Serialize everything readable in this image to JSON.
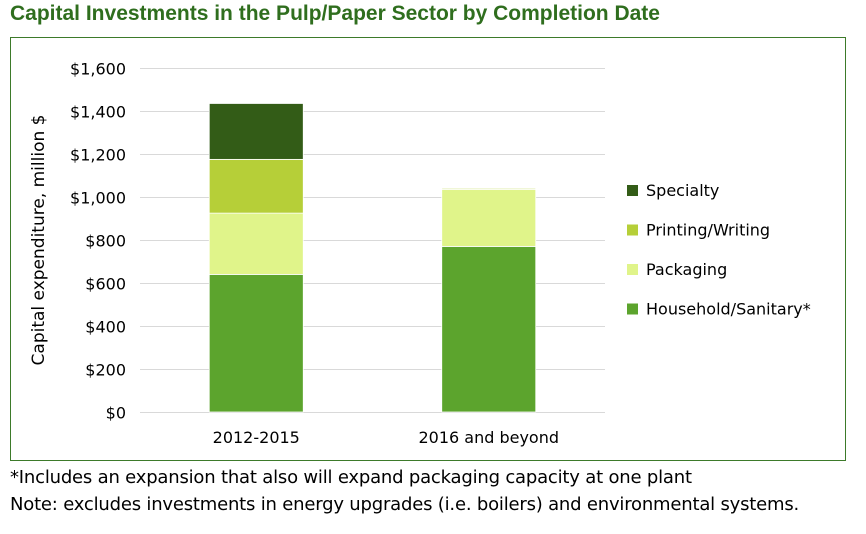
{
  "title": "Capital Investments in the Pulp/Paper Sector by Completion Date",
  "footnotes": [
    "*Includes an expansion that also will expand packaging capacity at one plant",
    "Note: excludes investments in energy upgrades (i.e. boilers) and environmental systems."
  ],
  "colors": {
    "title": "#2f6e1e",
    "frame": "#3d7a2a",
    "grid": "#d9d9d9"
  },
  "chart_data": {
    "type": "bar",
    "stacked": true,
    "title": "Capital Investments in the Pulp/Paper Sector by Completion Date",
    "xlabel": "",
    "ylabel": "Capital expenditure, million $",
    "ylim": [
      0,
      1600
    ],
    "ytick_labels": [
      "$0",
      "$200",
      "$400",
      "$600",
      "$800",
      "$1,000",
      "$1,200",
      "$1,400",
      "$1,600"
    ],
    "ytick_values": [
      0,
      200,
      400,
      600,
      800,
      1000,
      1200,
      1400,
      1600
    ],
    "categories": [
      "2012-2015",
      "2016 and beyond"
    ],
    "grid": true,
    "legend_position": "right",
    "series": [
      {
        "name": "Household/Sanitary*",
        "color": "#5ca42d",
        "values": [
          640,
          770
        ]
      },
      {
        "name": "Packaging",
        "color": "#e0f48a",
        "values": [
          285,
          265
        ]
      },
      {
        "name": "Printing/Writing",
        "color": "#b6cf38",
        "values": [
          250,
          5
        ]
      },
      {
        "name": "Specialty",
        "color": "#335c17",
        "values": [
          260,
          0
        ]
      }
    ]
  }
}
